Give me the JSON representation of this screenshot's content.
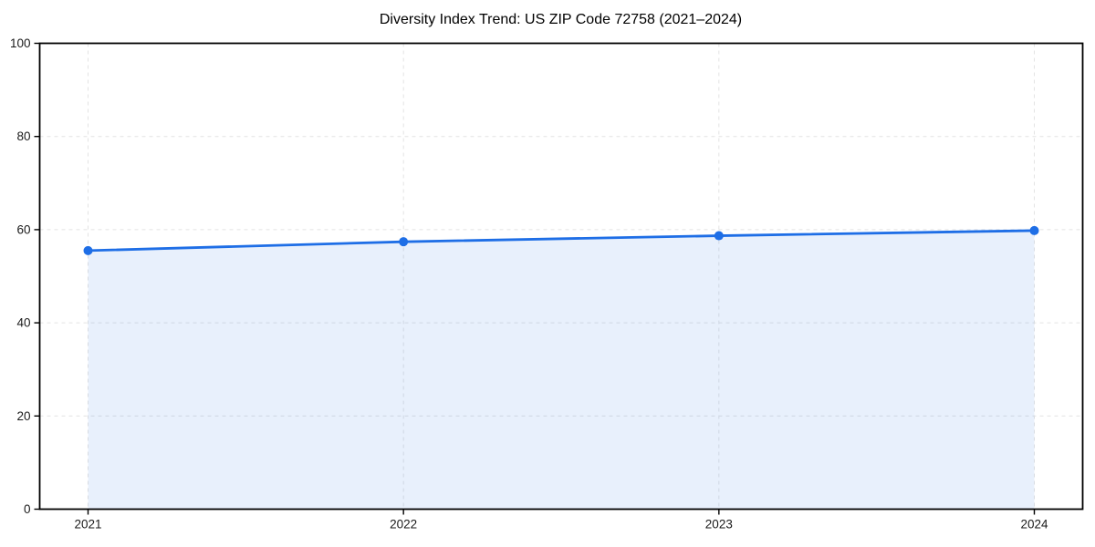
{
  "page": {
    "background": "#ffffff"
  },
  "chart_data": {
    "type": "line",
    "title": "Diversity Index Trend: US ZIP Code 72758 (2021–2024)",
    "x": [
      2021,
      2022,
      2023,
      2024
    ],
    "xtick_labels": [
      "2021",
      "2022",
      "2023",
      "2024"
    ],
    "series": [
      {
        "name": "Diversity Index",
        "values": [
          55.5,
          57.4,
          58.7,
          59.8
        ]
      }
    ],
    "xlabel": "",
    "ylabel": "",
    "ylim": [
      0,
      100
    ],
    "yticks": [
      0,
      20,
      40,
      60,
      80,
      100
    ],
    "grid": true,
    "grid_style": "dashed",
    "legend_position": "none",
    "colors": {
      "line": "#1e6ee6",
      "marker": "#1e6ee6",
      "area_fill": "rgba(30,110,230,0.10)",
      "grid": "#e3e3e3",
      "spine": "#000000",
      "tick_label": "#1a1a1a",
      "title": "#000000"
    }
  }
}
